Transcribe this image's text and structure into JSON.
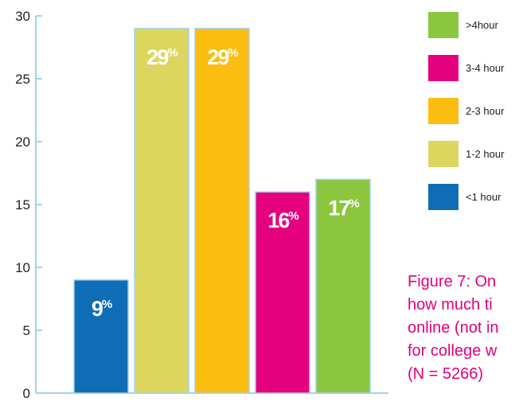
{
  "chart_data": {
    "type": "bar",
    "categories": [
      "<1 hour",
      "1-2 hour",
      "2-3 hour",
      "3-4 hour",
      ">4hour"
    ],
    "values": [
      9,
      29,
      29,
      16,
      17
    ],
    "value_labels": [
      {
        "num": "9",
        "unit": "%"
      },
      {
        "num": "29",
        "unit": "%"
      },
      {
        "num": "29",
        "unit": "%"
      },
      {
        "num": "16",
        "unit": "%"
      },
      {
        "num": "17",
        "unit": "%"
      }
    ],
    "colors": [
      "#0f6db5",
      "#ddd65e",
      "#fbbd0f",
      "#e5007e",
      "#8cc63f"
    ],
    "ylim": [
      0,
      30
    ],
    "yticks": [
      0,
      5,
      10,
      15,
      20,
      25,
      30
    ],
    "ytick_labels": [
      "0",
      "5",
      "10",
      "15",
      "20",
      "25",
      "30"
    ],
    "grid": false,
    "legend_position": "right",
    "legend": [
      {
        "label": ">4hour",
        "color": "#8cc63f"
      },
      {
        "label": "3-4 hour",
        "color": "#e5007e"
      },
      {
        "label": "2-3 hour",
        "color": "#fbbd0f"
      },
      {
        "label": "1-2 hour",
        "color": "#ddd65e"
      },
      {
        "label": "<1 hour",
        "color": "#0f6db5"
      }
    ],
    "axis_color": "#9fd3ee",
    "bar_border_color": "#9fd3ee"
  },
  "caption": {
    "lines": [
      "Figure 7: On",
      "how much ti",
      "online (not in",
      "for college w",
      "(N = 5266)"
    ]
  }
}
